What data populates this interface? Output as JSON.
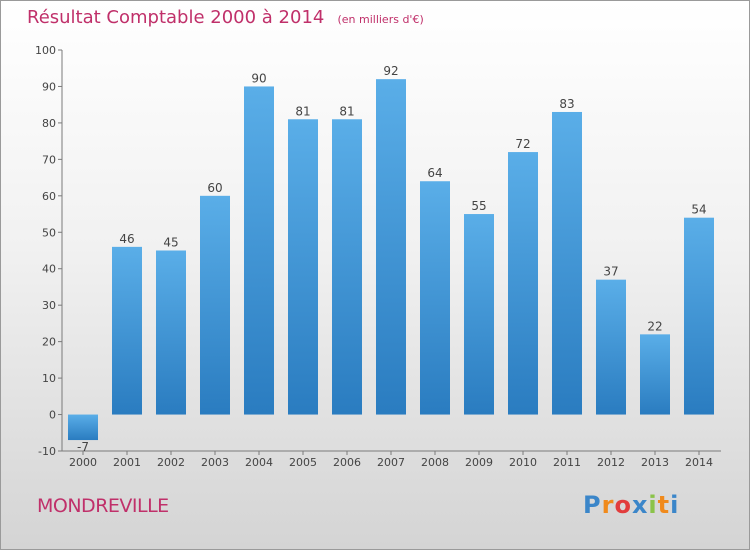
{
  "title": "Résultat Comptable 2000 à 2014",
  "unit": "(en milliers d'€)",
  "commune": "MONDREVILLE",
  "brand": "Proxiti",
  "colors": {
    "title": "#c0306a",
    "bar_top": "#5aaee8",
    "bar_bottom": "#2a7cc0",
    "brand_letters": [
      "#3b86c9",
      "#f08a1c",
      "#e23d3d",
      "#3b86c9",
      "#8bc34a",
      "#f08a1c",
      "#3b86c9"
    ]
  },
  "chart_data": {
    "type": "bar",
    "categories": [
      "2000",
      "2001",
      "2002",
      "2003",
      "2004",
      "2005",
      "2006",
      "2007",
      "2008",
      "2009",
      "2010",
      "2011",
      "2012",
      "2013",
      "2014"
    ],
    "values": [
      -7,
      46,
      45,
      60,
      90,
      81,
      81,
      92,
      64,
      55,
      72,
      83,
      37,
      22,
      54
    ],
    "y_ticks": [
      -10,
      0,
      10,
      20,
      30,
      40,
      50,
      60,
      70,
      80,
      90,
      100
    ],
    "ylim": [
      -10,
      100
    ],
    "grid": false,
    "title": "Résultat Comptable 2000 à 2014",
    "xlabel": "",
    "ylabel": ""
  }
}
